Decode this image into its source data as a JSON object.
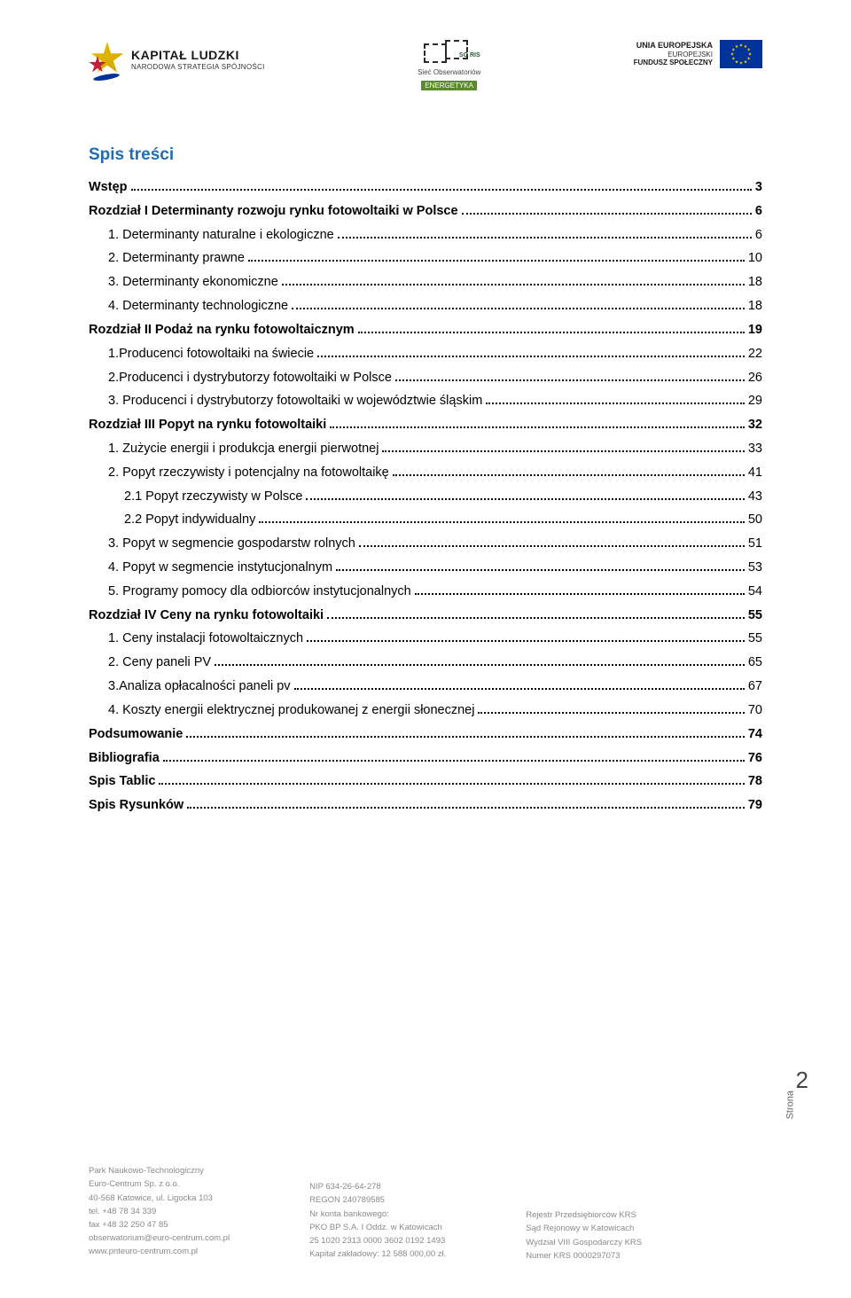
{
  "colors": {
    "heading": "#1f6db3",
    "text": "#000000",
    "footer_text": "#8a8a8a",
    "eu_blue": "#003399",
    "eu_gold": "#ffcc00"
  },
  "header": {
    "left": {
      "title": "KAPITAŁ LUDZKI",
      "subtitle": "NARODOWA STRATEGIA SPÓJNOŚCI"
    },
    "center": {
      "badge": "SO RIS",
      "line1": "Sieć Obserwatoriów",
      "line2": "ENERGETYKA"
    },
    "right": {
      "line1": "UNIA EUROPEJSKA",
      "line2": "EUROPEJSKI",
      "line3": "FUNDUSZ SPOŁECZNY"
    }
  },
  "toc_heading": "Spis treści",
  "toc": [
    {
      "level": 0,
      "label": "Wstęp",
      "page": "3"
    },
    {
      "level": 0,
      "label": "Rozdział I Determinanty rozwoju rynku fotowoltaiki w Polsce",
      "page": "6"
    },
    {
      "level": 1,
      "label": "1. Determinanty naturalne i ekologiczne",
      "page": "6"
    },
    {
      "level": 1,
      "label": "2. Determinanty prawne",
      "page": "10"
    },
    {
      "level": 1,
      "label": "3. Determinanty ekonomiczne",
      "page": "18"
    },
    {
      "level": 1,
      "label": "4. Determinanty technologiczne",
      "page": "18"
    },
    {
      "level": 0,
      "label": "Rozdział II Podaż na rynku fotowoltaicznym",
      "page": "19"
    },
    {
      "level": 1,
      "label": "1.Producenci fotowoltaiki na świecie",
      "page": "22"
    },
    {
      "level": 1,
      "label": "2.Producenci i dystrybutorzy fotowoltaiki w Polsce",
      "page": "26"
    },
    {
      "level": 1,
      "label": "3. Producenci i dystrybutorzy fotowoltaiki w województwie śląskim",
      "page": "29"
    },
    {
      "level": 0,
      "label": "Rozdział III Popyt na rynku fotowoltaiki",
      "page": "32"
    },
    {
      "level": 1,
      "label": "1. Zużycie energii i produkcja energii pierwotnej",
      "page": "33"
    },
    {
      "level": 1,
      "label": "2. Popyt rzeczywisty i potencjalny na fotowoltaikę",
      "page": "41"
    },
    {
      "level": 2,
      "label": "2.1 Popyt rzeczywisty w Polsce",
      "page": "43"
    },
    {
      "level": 2,
      "label": "2.2 Popyt indywidualny",
      "page": "50"
    },
    {
      "level": 1,
      "label": "3. Popyt w segmencie gospodarstw rolnych",
      "page": "51"
    },
    {
      "level": 1,
      "label": "4. Popyt w segmencie instytucjonalnym",
      "page": "53"
    },
    {
      "level": 1,
      "label": "5. Programy pomocy dla odbiorców instytucjonalnych",
      "page": "54"
    },
    {
      "level": 0,
      "label": "Rozdział IV Ceny na rynku fotowoltaiki",
      "page": "55"
    },
    {
      "level": 1,
      "label": "1. Ceny instalacji fotowoltaicznych",
      "page": "55"
    },
    {
      "level": 1,
      "label": "2. Ceny paneli PV",
      "page": "65"
    },
    {
      "level": 1,
      "label": "3.Analiza opłacalności paneli pv",
      "page": "67"
    },
    {
      "level": 1,
      "label": "4. Koszty energii elektrycznej produkowanej z energii słonecznej",
      "page": "70"
    },
    {
      "level": 0,
      "label": "Podsumowanie",
      "page": "74"
    },
    {
      "level": 0,
      "label": "Bibliografia",
      "page": "76"
    },
    {
      "level": 0,
      "label": "Spis Tablic",
      "page": "78"
    },
    {
      "level": 0,
      "label": "Spis Rysunków",
      "page": "79"
    }
  ],
  "page_number": {
    "label": "Strona",
    "value": "2"
  },
  "footer": {
    "col1": [
      "Park Naukowo-Technologiczny",
      "Euro-Centrum Sp. z o.o.",
      "40-568 Katowice, ul. Ligocka 103",
      "tel. +48 78 34 339",
      "fax +48 32 250 47 85",
      "obserwatorium@euro-centrum.com.pl",
      "www.pnteuro-centrum.com.pl"
    ],
    "col2": [
      "NIP 634-26-64-278",
      "REGON 240789585",
      "Nr konta bankowego:",
      "PKO BP S.A. I Oddz. w Katowicach",
      "25 1020 2313 0000 3602 0192 1493",
      "Kapitał zakładowy: 12 588 000,00 zł."
    ],
    "col3": [
      "Rejestr Przedsiębiorców KRS",
      "Sąd Rejonowy w Katowicach",
      "Wydział VIII Gospodarczy KRS",
      "Numer KRS 0000297073"
    ]
  }
}
